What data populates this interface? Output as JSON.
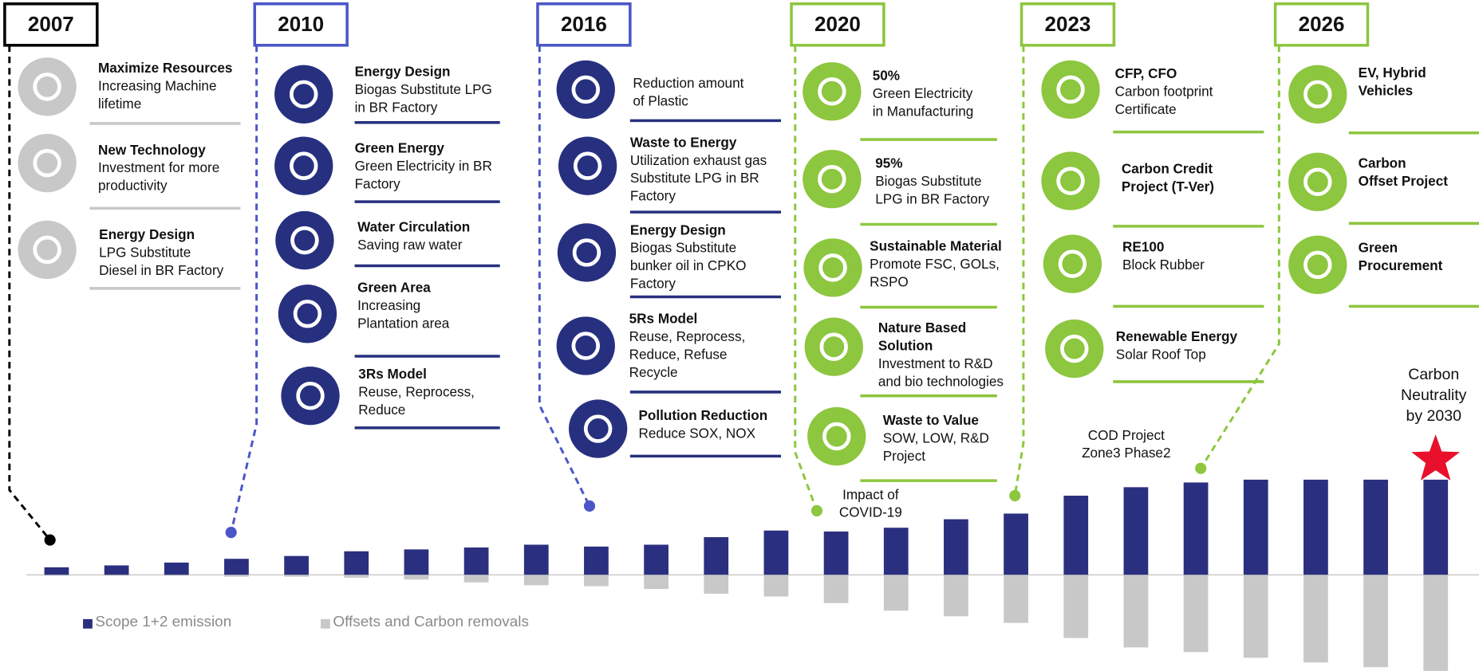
{
  "milestones": [
    {
      "year": "2007",
      "items": [
        {
          "title": [
            "Maximize Resources"
          ],
          "text": [
            "Increasing Machine",
            "lifetime"
          ]
        },
        {
          "title": [
            "New Technology"
          ],
          "text": [
            "Investment for more",
            "productivity"
          ]
        },
        {
          "title": [
            "Energy Design"
          ],
          "text": [
            "LPG Substitute",
            "Diesel in BR Factory"
          ]
        }
      ]
    },
    {
      "year": "2010",
      "items": [
        {
          "title": [
            "Energy Design"
          ],
          "text": [
            "Biogas Substitute LPG",
            "in BR Factory"
          ]
        },
        {
          "title": [
            "Green Energy"
          ],
          "text": [
            "Green Electricity in BR",
            "Factory"
          ]
        },
        {
          "title": [
            "Water Circulation"
          ],
          "text": [
            "Saving raw water"
          ]
        },
        {
          "title": [
            "Green Area"
          ],
          "text": [
            "Increasing",
            "Plantation area"
          ]
        },
        {
          "title": [
            "3Rs Model"
          ],
          "text": [
            "Reuse, Reprocess,",
            "Reduce"
          ]
        }
      ]
    },
    {
      "year": "2016",
      "items": [
        {
          "title": [],
          "text": [
            "Reduction amount",
            "of Plastic"
          ]
        },
        {
          "title": [
            "Waste to Energy"
          ],
          "text": [
            "Utilization exhaust gas",
            "Substitute LPG in BR",
            "Factory"
          ]
        },
        {
          "title": [
            "Energy Design"
          ],
          "text": [
            "Biogas Substitute",
            "bunker oil in CPKO",
            "Factory"
          ]
        },
        {
          "title": [
            "5Rs Model"
          ],
          "text": [
            "Reuse, Reprocess,",
            "Reduce, Refuse",
            "Recycle"
          ]
        },
        {
          "title": [
            "Pollution Reduction"
          ],
          "text": [
            "Reduce SOX, NOX"
          ]
        }
      ]
    },
    {
      "year": "2020",
      "items": [
        {
          "title": [
            "50%"
          ],
          "text": [
            "Green Electricity",
            "in Manufacturing"
          ]
        },
        {
          "title": [
            "95%"
          ],
          "text": [
            "Biogas Substitute",
            "LPG in BR Factory"
          ]
        },
        {
          "title": [
            "Sustainable Material"
          ],
          "text": [
            "Promote FSC, GOLs,",
            "RSPO"
          ]
        },
        {
          "title": [
            "Nature Based",
            "Solution"
          ],
          "text": [
            "Investment to R&D",
            "and bio technologies"
          ]
        },
        {
          "title": [
            "Waste to Value"
          ],
          "text": [
            "SOW, LOW, R&D",
            "Project"
          ]
        }
      ]
    },
    {
      "year": "2023",
      "items": [
        {
          "title": [
            "CFP, CFO"
          ],
          "text": [
            "Carbon footprint",
            "Certificate"
          ]
        },
        {
          "title": [
            "Carbon Credit",
            "Project (T-Ver)"
          ],
          "text": []
        },
        {
          "title": [
            "RE100"
          ],
          "text": [
            "Block Rubber"
          ]
        },
        {
          "title": [
            "Renewable Energy"
          ],
          "text": [
            "Solar Roof Top"
          ]
        }
      ]
    },
    {
      "year": "2026",
      "items": [
        {
          "title": [
            "EV, Hybrid",
            "Vehicles"
          ],
          "text": []
        },
        {
          "title": [
            "Carbon",
            "Offset Project"
          ],
          "text": []
        },
        {
          "title": [
            "Green",
            "Procurement"
          ],
          "text": []
        }
      ]
    }
  ],
  "chart_data": {
    "type": "bar",
    "categories": [
      null,
      null,
      null,
      null,
      null,
      null,
      null,
      null,
      null,
      null,
      null,
      null,
      null,
      null,
      null,
      null,
      null,
      null,
      null,
      null,
      null,
      null,
      null,
      null
    ],
    "series": [
      {
        "name": "Scope 1+2 emission",
        "color": "#2b2f7f",
        "values": [
          8,
          10,
          13,
          17,
          20,
          25,
          27,
          29,
          32,
          30,
          32,
          40,
          47,
          46,
          50,
          59,
          65,
          84,
          93,
          98,
          101,
          101,
          101,
          101
        ]
      },
      {
        "name": "Offsets and Carbon removals",
        "color": "#c8c8c8",
        "values": [
          -1,
          -1,
          -1,
          -2,
          -2,
          -3,
          -5,
          -8,
          -11,
          -12,
          -15,
          -20,
          -23,
          -30,
          -38,
          -44,
          -51,
          -67,
          -77,
          -82,
          -88,
          -93,
          -98,
          -102
        ]
      }
    ],
    "annotations": [
      {
        "text": [
          "Impact of",
          "COVID-19"
        ],
        "color": "#111111"
      },
      {
        "text": [
          "COD Project",
          "Zone3 Phase2"
        ],
        "color": "#111111"
      },
      {
        "text": [
          "Carbon",
          "Neutrality",
          "by 2030"
        ],
        "color": "#e8102a"
      }
    ],
    "legend": "bottom-left"
  }
}
